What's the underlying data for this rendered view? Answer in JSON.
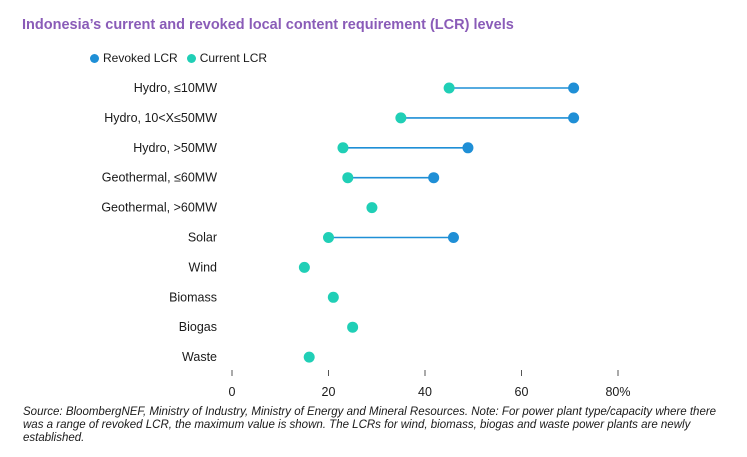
{
  "colors": {
    "title": "#8a5cb8",
    "revoked": "#1f8fd6",
    "current": "#20cfb6",
    "connector": "#1f8fd6",
    "axis": "#555555",
    "text": "#1a1a1a"
  },
  "legend": {
    "revoked_label": "Revoked LCR",
    "current_label": "Current LCR"
  },
  "chart_data": {
    "type": "dumbbell",
    "title": "Indonesia’s current and revoked local content requirement (LCR) levels",
    "xlabel": "",
    "ylabel": "",
    "xlim": [
      0,
      80
    ],
    "xticks": [
      0,
      20,
      40,
      60,
      80
    ],
    "xtick_labels": [
      "0",
      "20",
      "40",
      "60",
      "80%"
    ],
    "grid": false,
    "legend_position": "top-left",
    "categories": [
      "Hydro, ≤10MW",
      "Hydro, 10<X≤50MW",
      "Hydro, >50MW",
      "Geothermal, ≤60MW",
      "Geothermal, >60MW",
      "Solar",
      "Wind",
      "Biomass",
      "Biogas",
      "Waste"
    ],
    "series": [
      {
        "name": "Revoked LCR",
        "values": [
          70.8,
          70.8,
          48.9,
          41.8,
          null,
          45.9,
          null,
          null,
          null,
          null
        ]
      },
      {
        "name": "Current LCR",
        "values": [
          45,
          35,
          23,
          24,
          29,
          20,
          15,
          21,
          25,
          16
        ]
      }
    ]
  },
  "source": "Source: BloombergNEF, Ministry of Industry, Ministry of Energy and Mineral Resources. Note: For power plant type/capacity where there was a range of revoked LCR, the maximum value is shown. The LCRs for wind, biomass, biogas and waste power plants are newly established."
}
